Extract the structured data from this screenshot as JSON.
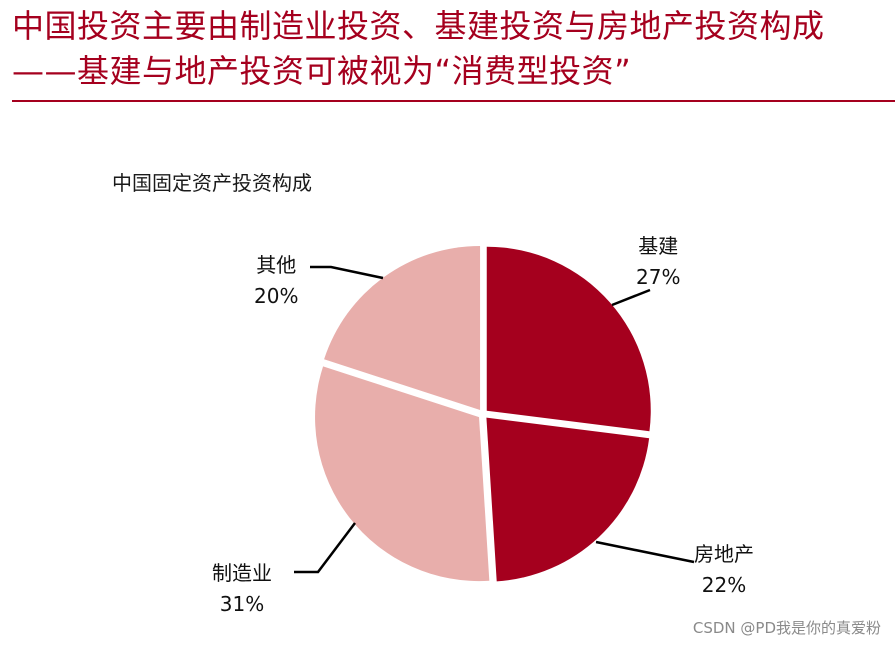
{
  "header": {
    "title": "中国投资主要由制造业投资、基建投资与房地产投资构成——基建与地产投资可被视为“消费型投资”",
    "accent_color": "#a5001e"
  },
  "chart_data": {
    "type": "pie",
    "title": "中国固定资产投资构成",
    "unit": "%",
    "slices": [
      {
        "name": "基建",
        "value": 27,
        "label": "27%",
        "color": "#a5001e"
      },
      {
        "name": "房地产",
        "value": 22,
        "label": "22%",
        "color": "#a5001e"
      },
      {
        "name": "制造业",
        "value": 31,
        "label": "31%",
        "color": "#e8aeab"
      },
      {
        "name": "其他",
        "value": 20,
        "label": "20%",
        "color": "#e8aeab"
      }
    ]
  },
  "watermark": "CSDN @PD我是你的真爱粉"
}
